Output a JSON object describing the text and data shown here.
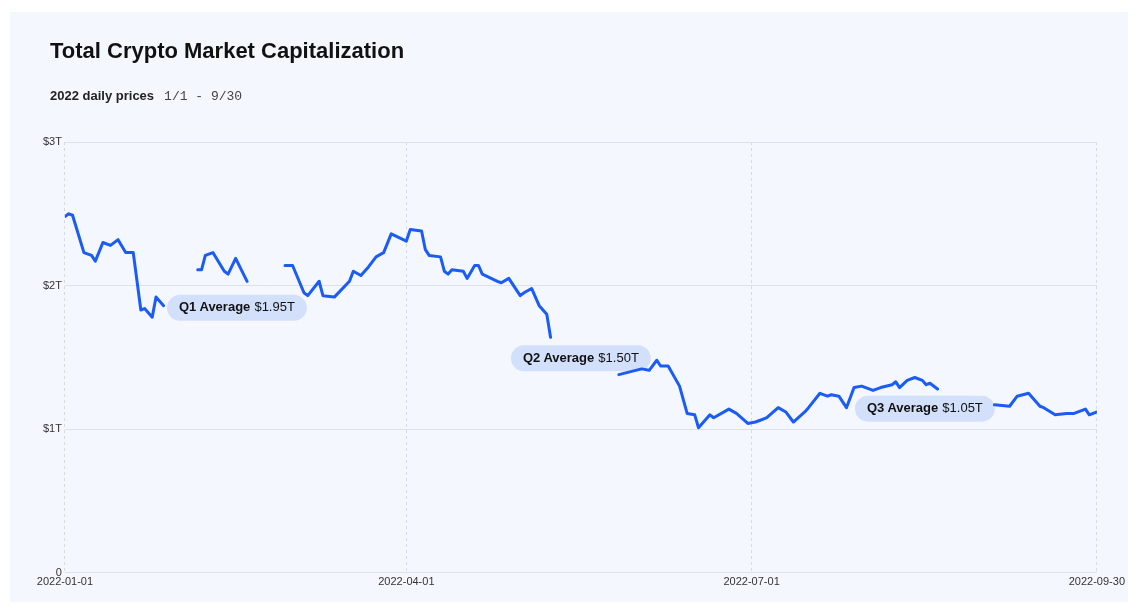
{
  "chart_data": {
    "type": "line",
    "title": "Total Crypto Market Capitalization",
    "subtitle": "2022 daily prices",
    "x": [
      "2022-01-01",
      "2022-01-02",
      "2022-01-03",
      "2022-01-06",
      "2022-01-08",
      "2022-01-09",
      "2022-01-11",
      "2022-01-13",
      "2022-01-15",
      "2022-01-17",
      "2022-01-19",
      "2022-01-21",
      "2022-01-22",
      "2022-01-24",
      "2022-01-25",
      "2022-01-27",
      "2022-01-28",
      "2022-01-31",
      "2022-02-03",
      "2022-02-05",
      "2022-02-06",
      "2022-02-07",
      "2022-02-09",
      "2022-02-12",
      "2022-02-13",
      "2022-02-15",
      "2022-02-18",
      "2022-02-19",
      "2022-02-22",
      "2022-02-25",
      "2022-02-27",
      "2022-02-28",
      "2022-03-02",
      "2022-03-05",
      "2022-03-06",
      "2022-03-09",
      "2022-03-10",
      "2022-03-13",
      "2022-03-17",
      "2022-03-18",
      "2022-03-20",
      "2022-03-22",
      "2022-03-24",
      "2022-03-26",
      "2022-03-28",
      "2022-04-01",
      "2022-04-02",
      "2022-04-05",
      "2022-04-06",
      "2022-04-07",
      "2022-04-10",
      "2022-04-11",
      "2022-04-12",
      "2022-04-13",
      "2022-04-16",
      "2022-04-17",
      "2022-04-19",
      "2022-04-20",
      "2022-04-21",
      "2022-04-25",
      "2022-04-26",
      "2022-04-28",
      "2022-05-01",
      "2022-05-02",
      "2022-05-04",
      "2022-05-06",
      "2022-05-08",
      "2022-05-09",
      "2022-05-11",
      "2022-05-27",
      "2022-06-02",
      "2022-06-04",
      "2022-06-06",
      "2022-06-07",
      "2022-06-09",
      "2022-06-12",
      "2022-06-14",
      "2022-06-16",
      "2022-06-17",
      "2022-06-20",
      "2022-06-21",
      "2022-06-25",
      "2022-06-27",
      "2022-06-30",
      "2022-07-02",
      "2022-07-05",
      "2022-07-08",
      "2022-07-10",
      "2022-07-12",
      "2022-07-15",
      "2022-07-16",
      "2022-07-19",
      "2022-07-21",
      "2022-07-22",
      "2022-07-24",
      "2022-07-26",
      "2022-07-28",
      "2022-07-30",
      "2022-08-02",
      "2022-08-04",
      "2022-08-07",
      "2022-08-08",
      "2022-08-09",
      "2022-08-11",
      "2022-08-13",
      "2022-08-15",
      "2022-08-16",
      "2022-08-17",
      "2022-08-19",
      "2022-08-20",
      "2022-09-03",
      "2022-09-07",
      "2022-09-09",
      "2022-09-12",
      "2022-09-15",
      "2022-09-16",
      "2022-09-19",
      "2022-09-22",
      "2022-09-24",
      "2022-09-27",
      "2022-09-28",
      "2022-09-30"
    ],
    "series": [
      {
        "color": "#1a5cf5",
        "values": [
          2.48,
          2.5,
          2.49,
          2.23,
          2.21,
          2.17,
          2.3,
          2.28,
          2.32,
          2.23,
          2.23,
          1.83,
          1.84,
          1.78,
          1.92,
          1.86,
          null,
          null,
          null,
          2.11,
          2.11,
          2.21,
          2.23,
          2.1,
          2.08,
          2.19,
          2.03,
          null,
          null,
          null,
          null,
          2.14,
          2.14,
          1.95,
          1.93,
          2.03,
          1.93,
          1.92,
          2.03,
          2.1,
          2.07,
          2.13,
          2.2,
          2.23,
          2.36,
          2.31,
          2.39,
          2.38,
          2.25,
          2.21,
          2.2,
          2.1,
          2.08,
          2.11,
          2.1,
          2.05,
          2.14,
          2.14,
          2.08,
          2.03,
          2.02,
          2.05,
          1.93,
          1.95,
          1.98,
          1.86,
          1.8,
          1.64,
          null,
          1.38,
          1.42,
          1.41,
          1.48,
          1.44,
          1.44,
          1.3,
          1.11,
          1.1,
          1.01,
          1.1,
          1.08,
          1.14,
          1.11,
          1.04,
          1.05,
          1.08,
          1.15,
          1.12,
          1.05,
          1.12,
          1.15,
          1.25,
          1.23,
          1.24,
          1.23,
          1.15,
          1.29,
          1.3,
          1.27,
          1.29,
          1.31,
          1.33,
          1.29,
          1.34,
          1.36,
          1.34,
          1.31,
          1.32,
          1.28,
          null,
          1.17,
          1.16,
          1.23,
          1.25,
          1.16,
          1.15,
          1.1,
          1.11,
          1.11,
          1.14,
          1.1,
          1.12
        ]
      }
    ],
    "xlim": [
      "2022-01-01",
      "2022-09-30"
    ],
    "xticks": [
      "2022-01-01",
      "2022-04-01",
      "2022-07-01",
      "2022-09-30"
    ],
    "ylim": [
      0,
      3
    ],
    "yticks": [
      {
        "value": 0,
        "label": "0"
      },
      {
        "value": 1,
        "label": "$1T"
      },
      {
        "value": 2,
        "label": "$2T"
      },
      {
        "value": 3,
        "label": "$3T"
      }
    ],
    "grid": true,
    "marker": "none",
    "line_style": "solid",
    "legend": false,
    "annotations": [
      "1/1 - 9/30",
      "Q1 Average $1.95T",
      "Q2 Average $1.50T",
      "Q3 Average $1.05T"
    ]
  }
}
